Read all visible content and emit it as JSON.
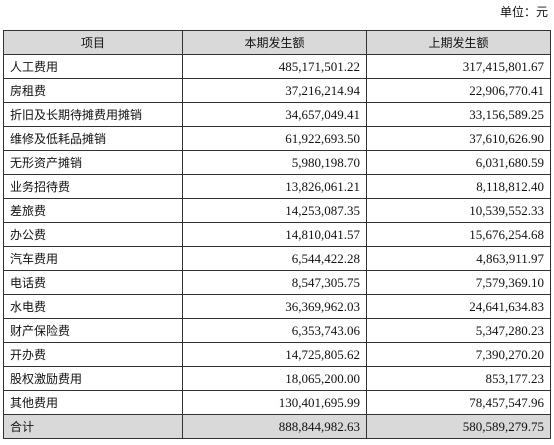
{
  "unit_label": "单位：元",
  "table": {
    "headers": [
      "项目",
      "本期发生额",
      "上期发生额"
    ],
    "rows": [
      {
        "item": "人工费用",
        "current": "485,171,501.22",
        "previous": "317,415,801.67"
      },
      {
        "item": "房租费",
        "current": "37,216,214.94",
        "previous": "22,906,770.41"
      },
      {
        "item": "折旧及长期待摊费用摊销",
        "current": "34,657,049.41",
        "previous": "33,156,589.25"
      },
      {
        "item": "维修及低耗品摊销",
        "current": "61,922,693.50",
        "previous": "37,610,626.90"
      },
      {
        "item": "无形资产摊销",
        "current": "5,980,198.70",
        "previous": "6,031,680.59"
      },
      {
        "item": "业务招待费",
        "current": "13,826,061.21",
        "previous": "8,118,812.40"
      },
      {
        "item": "差旅费",
        "current": "14,253,087.35",
        "previous": "10,539,552.33"
      },
      {
        "item": "办公费",
        "current": "14,810,041.57",
        "previous": "15,676,254.68"
      },
      {
        "item": "汽车费用",
        "current": "6,544,422.28",
        "previous": "4,863,911.97"
      },
      {
        "item": "电话费",
        "current": "8,547,305.75",
        "previous": "7,579,369.10"
      },
      {
        "item": "水电费",
        "current": "36,369,962.03",
        "previous": "24,641,634.83"
      },
      {
        "item": "财产保险费",
        "current": "6,353,743.06",
        "previous": "5,347,280.23"
      },
      {
        "item": "开办费",
        "current": "14,725,805.62",
        "previous": "7,390,270.20"
      },
      {
        "item": "股权激励费用",
        "current": "18,065,200.00",
        "previous": "853,177.23"
      },
      {
        "item": "其他费用",
        "current": "130,401,695.99",
        "previous": "78,457,547.96"
      }
    ],
    "total": {
      "item": "合计",
      "current": "888,844,982.63",
      "previous": "580,589,279.75"
    }
  }
}
